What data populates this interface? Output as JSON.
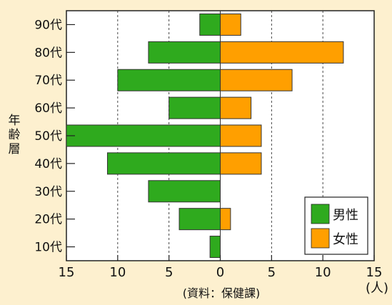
{
  "chart_data": {
    "type": "bar",
    "orientation": "horizontal",
    "subtype": "population-pyramid",
    "categories": [
      "10代",
      "20代",
      "30代",
      "40代",
      "50代",
      "60代",
      "70代",
      "80代",
      "90代"
    ],
    "series": [
      {
        "name": "男性",
        "color": "#2faa1e",
        "direction": "left",
        "values": [
          1,
          4,
          7,
          11,
          15,
          5,
          10,
          7,
          2
        ]
      },
      {
        "name": "女性",
        "color": "#ff9f00",
        "direction": "right",
        "values": [
          0,
          1,
          0,
          4,
          4,
          3,
          7,
          12,
          2
        ]
      }
    ],
    "ylabel": "年齢層",
    "xlim": [
      -15,
      15
    ],
    "xticks": [
      -15,
      -10,
      -5,
      0,
      5,
      10,
      15
    ],
    "xtick_labels": [
      "15",
      "10",
      "5",
      "0",
      "5",
      "10",
      "15"
    ],
    "unit": "(人)",
    "source": "(資料：保健課)",
    "grid": "vertical-dashed",
    "legend_position": "bottom-right"
  }
}
